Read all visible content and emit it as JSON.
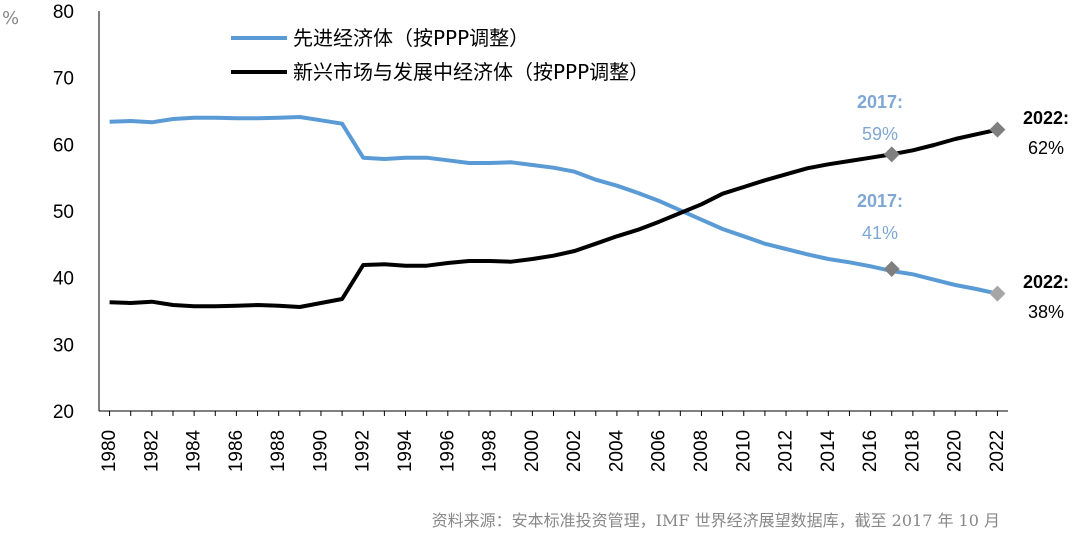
{
  "chart_data": {
    "type": "line",
    "ylabel": "%",
    "ylim": [
      20,
      80
    ],
    "yticks": [
      20,
      30,
      40,
      50,
      60,
      70,
      80
    ],
    "x": [
      1980,
      1981,
      1982,
      1983,
      1984,
      1985,
      1986,
      1987,
      1988,
      1989,
      1990,
      1991,
      1992,
      1993,
      1994,
      1995,
      1996,
      1997,
      1998,
      1999,
      2000,
      2001,
      2002,
      2003,
      2004,
      2005,
      2006,
      2007,
      2008,
      2009,
      2010,
      2011,
      2012,
      2013,
      2014,
      2015,
      2016,
      2017,
      2018,
      2019,
      2020,
      2021,
      2022
    ],
    "xticks": [
      1980,
      1982,
      1984,
      1986,
      1988,
      1990,
      1992,
      1994,
      1996,
      1998,
      2000,
      2002,
      2004,
      2006,
      2008,
      2010,
      2012,
      2014,
      2016,
      2018,
      2020,
      2022
    ],
    "series": [
      {
        "name": "先进经济体（按PPP调整）",
        "color": "#5b9bd5",
        "values": [
          63.4,
          63.5,
          63.3,
          63.8,
          64.0,
          64.0,
          63.9,
          63.9,
          64.0,
          64.1,
          63.6,
          63.1,
          58.0,
          57.8,
          58.0,
          58.0,
          57.6,
          57.2,
          57.2,
          57.3,
          56.9,
          56.5,
          55.9,
          54.7,
          53.8,
          52.7,
          51.5,
          50.1,
          48.7,
          47.3,
          46.2,
          45.1,
          44.3,
          43.5,
          42.8,
          42.3,
          41.7,
          41.0,
          40.5,
          39.7,
          38.9,
          38.3,
          37.6
        ]
      },
      {
        "name": "新兴市场与发展中经济体（按PPP调整）",
        "color": "#000000",
        "values": [
          36.3,
          36.2,
          36.4,
          35.9,
          35.7,
          35.7,
          35.8,
          35.9,
          35.8,
          35.6,
          36.2,
          36.8,
          41.9,
          42.0,
          41.8,
          41.8,
          42.2,
          42.5,
          42.5,
          42.4,
          42.8,
          43.3,
          44.0,
          45.1,
          46.2,
          47.2,
          48.4,
          49.7,
          51.0,
          52.6,
          53.6,
          54.6,
          55.5,
          56.4,
          57.0,
          57.5,
          58.0,
          58.5,
          59.1,
          59.9,
          60.8,
          61.5,
          62.2
        ]
      }
    ],
    "annotations": [
      {
        "year_label": "2017:",
        "value_label": "59%",
        "color": "#7fa7d4",
        "x": 2017,
        "y": 58.5,
        "marker_color": "#7f7f7f"
      },
      {
        "year_label": "2017:",
        "value_label": "41%",
        "color": "#7fa7d4",
        "x": 2017,
        "y": 41.3,
        "marker_color": "#7f7f7f"
      },
      {
        "year_label": "2022:",
        "value_label": "62%",
        "color": "#000000",
        "x": 2022,
        "y": 62.2,
        "marker_color": "#7f7f7f"
      },
      {
        "year_label": "2022:",
        "value_label": "38%",
        "color": "#000000",
        "x": 2022,
        "y": 37.6,
        "marker_color": "#a6a6a6"
      }
    ]
  },
  "source_note": "资料来源：安本标准投资管理，IMF 世界经济展望数据库，截至 2017 年 10 月"
}
